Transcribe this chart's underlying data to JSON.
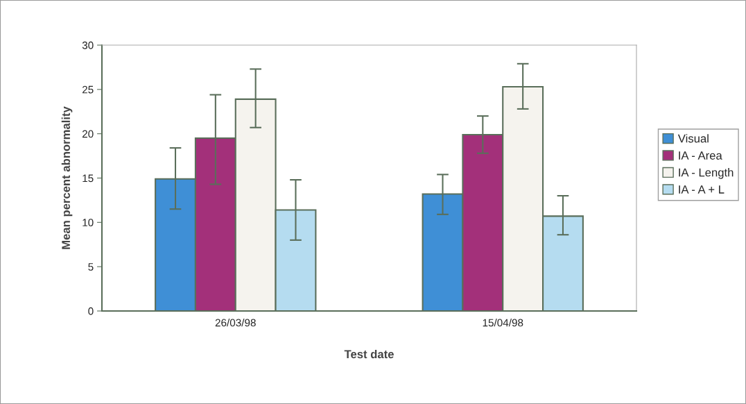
{
  "chart_data": {
    "type": "bar",
    "xlabel": "Test date",
    "ylabel": "Mean percent abnormality",
    "categories": [
      "26/03/98",
      "15/04/98"
    ],
    "series": [
      {
        "name": "Visual",
        "color": "#3f8fd6",
        "values": [
          14.9,
          13.2
        ],
        "errors": [
          [
            11.5,
            18.4
          ],
          [
            10.9,
            15.4
          ]
        ]
      },
      {
        "name": "IA - Area",
        "color": "#a3307a",
        "values": [
          19.5,
          19.9
        ],
        "errors": [
          [
            14.3,
            24.4
          ],
          [
            17.8,
            22.0
          ]
        ]
      },
      {
        "name": "IA - Length",
        "color": "#f5f3ee",
        "values": [
          23.9,
          25.3
        ],
        "errors": [
          [
            20.7,
            27.3
          ],
          [
            22.8,
            27.9
          ]
        ]
      },
      {
        "name": "IA - A + L",
        "color": "#b5dcf0",
        "values": [
          11.4,
          10.7
        ],
        "errors": [
          [
            8.0,
            14.8
          ],
          [
            8.6,
            13.0
          ]
        ]
      }
    ],
    "ylim": [
      0,
      30
    ],
    "yticks": [
      0,
      5,
      10,
      15,
      20,
      25,
      30
    ],
    "grid": false,
    "legend": "right"
  }
}
